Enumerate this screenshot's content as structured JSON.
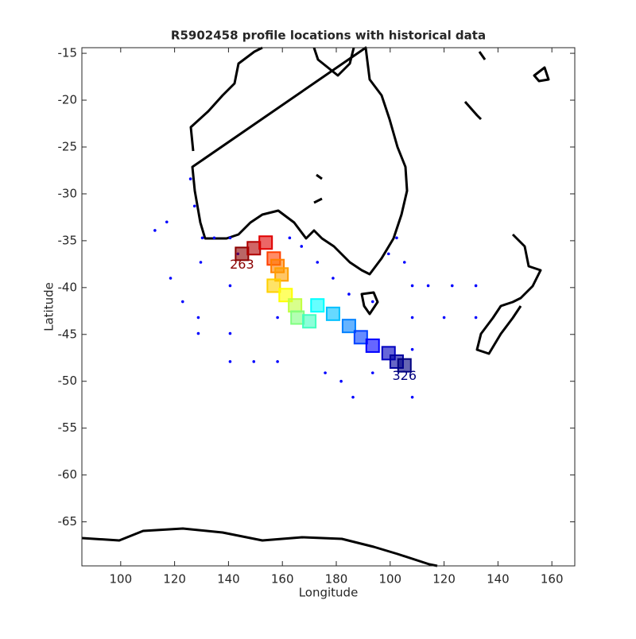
{
  "chart_data": {
    "type": "scatter",
    "title": "R5902458 profile locations with historical data",
    "x_label": "Longitude",
    "y_label": "Latitude",
    "xlim": [
      85.6,
      268.5
    ],
    "ylim": [
      -69.7,
      -14.4
    ],
    "xticks": [
      100,
      120,
      140,
      160,
      180,
      {
        "value": 200,
        "label": "100"
      },
      {
        "value": 220,
        "label": "120"
      },
      {
        "value": 240,
        "label": "140"
      },
      {
        "value": 260,
        "label": "160"
      }
    ],
    "yticks": [
      -65,
      -60,
      -55,
      -50,
      -45,
      -40,
      -35,
      -30,
      -25,
      -20,
      -15
    ],
    "series": [
      {
        "color": "#0000ff",
        "marker": "dot",
        "x": [
          112.7,
          117.1,
          125.9,
          127.4,
          130.3,
          134.7,
          140.6,
          143.5,
          140.6,
          140.6,
          140.6,
          149.4,
          158.2,
          158.2,
          162.7,
          167.1,
          173.0,
          178.8,
          184.7,
          193.5,
          199.4,
          202.4,
          205.3,
          208.2,
          214.1,
          223.0,
          231.8,
          208.2,
          220.0,
          231.8,
          208.2,
          208.2,
          175.9,
          181.8,
          186.2,
          193.5,
          128.8,
          128.8,
          118.5,
          123.0,
          129.7
        ],
        "y": [
          -33.9,
          -33.0,
          -28.4,
          -31.3,
          -34.7,
          -34.7,
          -34.7,
          -36.4,
          -39.8,
          -44.9,
          -47.9,
          -47.9,
          -47.9,
          -43.2,
          -34.7,
          -35.6,
          -37.3,
          -39.0,
          -40.7,
          -41.5,
          -36.4,
          -34.7,
          -37.3,
          -39.8,
          -39.8,
          -39.8,
          -39.8,
          -43.2,
          -43.2,
          -43.2,
          -46.6,
          -51.7,
          -49.1,
          -50.0,
          -51.7,
          -49.1,
          -43.2,
          -44.9,
          -39.0,
          -41.5,
          -37.3
        ]
      },
      {
        "marker": "profile",
        "colors": [
          "#8b0000",
          "#b00000",
          "#e00000",
          "#ff4000",
          "#ff8000",
          "#ffa000",
          "#ffd000",
          "#ffff00",
          "#c0ff40",
          "#80ff80",
          "#40ffc0",
          "#00ffff",
          "#00c0ff",
          "#0080ff",
          "#0040ff",
          "#0000ff",
          "#0000c0",
          "#0000a0",
          "#000080"
        ],
        "x": [
          145.0,
          149.4,
          153.8,
          156.8,
          158.2,
          159.7,
          156.8,
          161.2,
          164.7,
          165.6,
          170.0,
          173.0,
          178.8,
          184.7,
          189.1,
          193.5,
          199.4,
          202.4,
          205.3
        ],
        "y": [
          -36.4,
          -35.8,
          -35.2,
          -36.9,
          -37.7,
          -38.6,
          -39.8,
          -40.8,
          -41.9,
          -43.2,
          -43.6,
          -41.9,
          -42.8,
          -44.1,
          -45.3,
          -46.2,
          -47.0,
          -47.9,
          -48.3
        ],
        "labels": [
          "263",
          null,
          null,
          null,
          null,
          null,
          null,
          null,
          null,
          null,
          null,
          null,
          null,
          null,
          null,
          null,
          null,
          null,
          "326"
        ]
      }
    ]
  }
}
